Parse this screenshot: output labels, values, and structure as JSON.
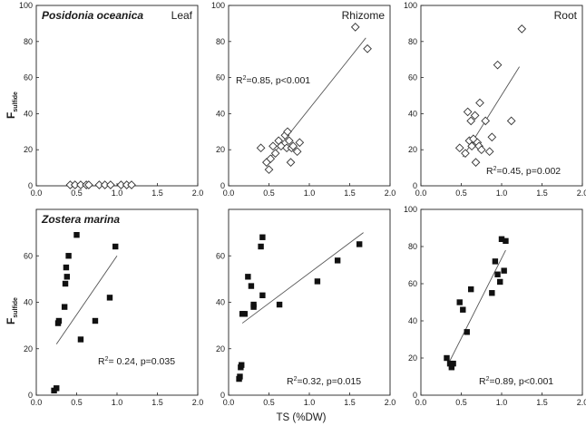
{
  "figure": {
    "x_label": "TS (%DW)",
    "y_label_main": "F",
    "y_label_sub": "sulfide",
    "row_labels": [
      "Posidonia oceanica",
      "Zostera marina"
    ],
    "column_labels": [
      "Leaf",
      "Rhizome",
      "Root"
    ]
  },
  "chart_data": [
    {
      "type": "scatter",
      "species": "Posidonia oceanica",
      "tissue": "Leaf",
      "marker": "diamond-open",
      "title_left": "Posidonia oceanica",
      "title_right": "Leaf",
      "annotation": "",
      "xlim": [
        0,
        2
      ],
      "ylim": [
        0,
        100
      ],
      "xticks": [
        "0.0",
        "0.5",
        "1.0",
        "1.5",
        "2.0"
      ],
      "yticks": [
        "0",
        "20",
        "40",
        "60",
        "80",
        "100"
      ],
      "x": [
        0.42,
        0.48,
        0.55,
        0.62,
        0.65,
        0.78,
        0.85,
        0.92,
        1.05,
        1.12,
        1.18
      ],
      "y": [
        0.5,
        0.5,
        0.5,
        0.5,
        0.5,
        0.5,
        0.5,
        0.5,
        0.5,
        0.5,
        0.5
      ]
    },
    {
      "type": "scatter",
      "species": "Posidonia oceanica",
      "tissue": "Rhizome",
      "marker": "diamond-open",
      "title_left": "",
      "title_right": "Rhizome",
      "annotation": "R2=0.85, p<0.001",
      "ann_sup": "2",
      "ann_pre": "R",
      "ann_post": "=0.85, p<0.001",
      "xlim": [
        0,
        2
      ],
      "ylim": [
        0,
        100
      ],
      "xticks": [
        "0.0",
        "0.5",
        "1.0",
        "1.5",
        "2.0"
      ],
      "yticks": [
        "0",
        "20",
        "40",
        "60",
        "80",
        "100"
      ],
      "x": [
        0.4,
        0.47,
        0.5,
        0.52,
        0.55,
        0.58,
        0.62,
        0.65,
        0.7,
        0.72,
        0.73,
        0.75,
        0.77,
        0.78,
        0.8,
        0.85,
        0.88,
        1.57,
        1.72
      ],
      "y": [
        21,
        13,
        9,
        15,
        22,
        18,
        25,
        22,
        28,
        21,
        30,
        25,
        13,
        21,
        22,
        19,
        24,
        88,
        76
      ],
      "fit": {
        "x": [
          0.47,
          1.7
        ],
        "y": [
          13,
          82
        ]
      }
    },
    {
      "type": "scatter",
      "species": "Posidonia oceanica",
      "tissue": "Root",
      "marker": "diamond-open",
      "title_left": "",
      "title_right": "Root",
      "annotation": "R2=0.45, p=0.002",
      "ann_sup": "2",
      "ann_pre": "R",
      "ann_post": "=0.45, p=0.002",
      "xlim": [
        0,
        2
      ],
      "ylim": [
        0,
        100
      ],
      "xticks": [
        "0.0",
        "0.5",
        "1.0",
        "1.5",
        "2.0"
      ],
      "yticks": [
        "0",
        "20",
        "40",
        "60",
        "80",
        "100"
      ],
      "x": [
        0.48,
        0.55,
        0.58,
        0.6,
        0.62,
        0.63,
        0.65,
        0.67,
        0.68,
        0.7,
        0.72,
        0.73,
        0.75,
        0.8,
        0.85,
        0.88,
        0.95,
        1.12,
        1.25
      ],
      "y": [
        21,
        18,
        41,
        25,
        36,
        22,
        26,
        39,
        13,
        24,
        22,
        46,
        20,
        36,
        19,
        27,
        67,
        36,
        87
      ],
      "fit": {
        "x": [
          0.52,
          1.22
        ],
        "y": [
          16,
          66
        ]
      }
    },
    {
      "type": "scatter",
      "species": "Zostera marina",
      "tissue": "Leaf",
      "marker": "square-filled",
      "title_left": "Zostera marina",
      "title_right": "",
      "annotation": "R2= 0.24, p=0.035",
      "ann_sup": "2",
      "ann_pre": "R",
      "ann_post": "= 0.24, p=0.035",
      "xlim": [
        0,
        2
      ],
      "ylim": [
        0,
        80
      ],
      "xticks": [
        "0.0",
        "0.5",
        "1.0",
        "1.5",
        "2.0"
      ],
      "yticks": [
        "0",
        "20",
        "40",
        "60"
      ],
      "x": [
        0.22,
        0.25,
        0.27,
        0.28,
        0.35,
        0.36,
        0.37,
        0.38,
        0.4,
        0.5,
        0.55,
        0.73,
        0.91,
        0.98
      ],
      "y": [
        2,
        3,
        31,
        32,
        38,
        48,
        55,
        51,
        60,
        69,
        24,
        32,
        42,
        64
      ],
      "fit": {
        "x": [
          0.25,
          1.0
        ],
        "y": [
          22,
          60
        ]
      }
    },
    {
      "type": "scatter",
      "species": "Zostera marina",
      "tissue": "Rhizome",
      "marker": "square-filled",
      "title_left": "",
      "title_right": "",
      "annotation": "R2=0.32, p=0.015",
      "ann_sup": "2",
      "ann_pre": "R",
      "ann_post": "=0.32, p=0.015",
      "xlim": [
        0,
        2
      ],
      "ylim": [
        0,
        80
      ],
      "xticks": [
        "0.0",
        "0.5",
        "1.0",
        "1.5",
        "2.0"
      ],
      "yticks": [
        "0",
        "20",
        "40",
        "60"
      ],
      "x": [
        0.13,
        0.14,
        0.15,
        0.16,
        0.17,
        0.18,
        0.2,
        0.24,
        0.28,
        0.31,
        0.31,
        0.4,
        0.42,
        0.42,
        0.63,
        1.1,
        1.35,
        1.62
      ],
      "y": [
        7,
        8,
        12,
        13,
        35,
        35,
        35,
        51,
        47,
        38,
        39,
        64,
        68,
        43,
        39,
        49,
        58,
        65
      ],
      "fit": {
        "x": [
          0.17,
          1.67
        ],
        "y": [
          31,
          70
        ]
      }
    },
    {
      "type": "scatter",
      "species": "Zostera marina",
      "tissue": "Root",
      "marker": "square-filled",
      "title_left": "",
      "title_right": "",
      "annotation": "R2=0.89, p<0.001",
      "ann_sup": "2",
      "ann_pre": "R",
      "ann_post": "=0.89, p<0.001",
      "xlim": [
        0,
        2
      ],
      "ylim": [
        0,
        100
      ],
      "xticks": [
        "0.0",
        "0.5",
        "1.0",
        "1.5",
        "2.0"
      ],
      "yticks": [
        "0",
        "20",
        "40",
        "60",
        "80",
        "100"
      ],
      "x": [
        0.32,
        0.36,
        0.38,
        0.4,
        0.48,
        0.52,
        0.57,
        0.62,
        0.88,
        0.92,
        0.95,
        0.98,
        1.0,
        1.03,
        1.05
      ],
      "y": [
        20,
        17,
        15,
        17,
        50,
        46,
        34,
        57,
        55,
        72,
        65,
        61,
        84,
        67,
        83
      ],
      "fit": {
        "x": [
          0.33,
          1.05
        ],
        "y": [
          16,
          78
        ]
      }
    }
  ]
}
